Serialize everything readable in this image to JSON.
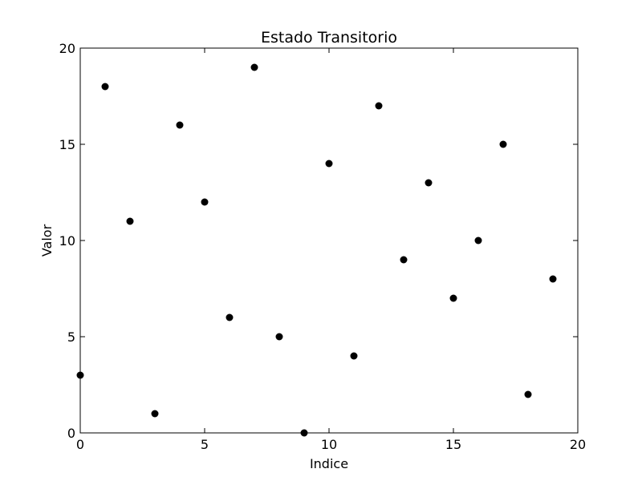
{
  "chart_data": {
    "type": "scatter",
    "title": "Estado Transitorio",
    "xlabel": "Indice",
    "ylabel": "Valor",
    "xlim": [
      0,
      20
    ],
    "ylim": [
      0,
      20
    ],
    "xticks": [
      "0",
      "5",
      "10",
      "15",
      "20"
    ],
    "yticks": [
      "0",
      "5",
      "10",
      "15",
      "20"
    ],
    "grid": false,
    "marker_color": "#000000",
    "series": [
      {
        "x": [
          0,
          1,
          2,
          3,
          4,
          5,
          6,
          7,
          8,
          9,
          10,
          11,
          12,
          13,
          14,
          15,
          16,
          17,
          18,
          19
        ],
        "y": [
          3,
          18,
          11,
          1,
          16,
          12,
          6,
          19,
          5,
          0,
          14,
          4,
          17,
          9,
          13,
          7,
          10,
          15,
          2,
          8
        ]
      }
    ]
  }
}
